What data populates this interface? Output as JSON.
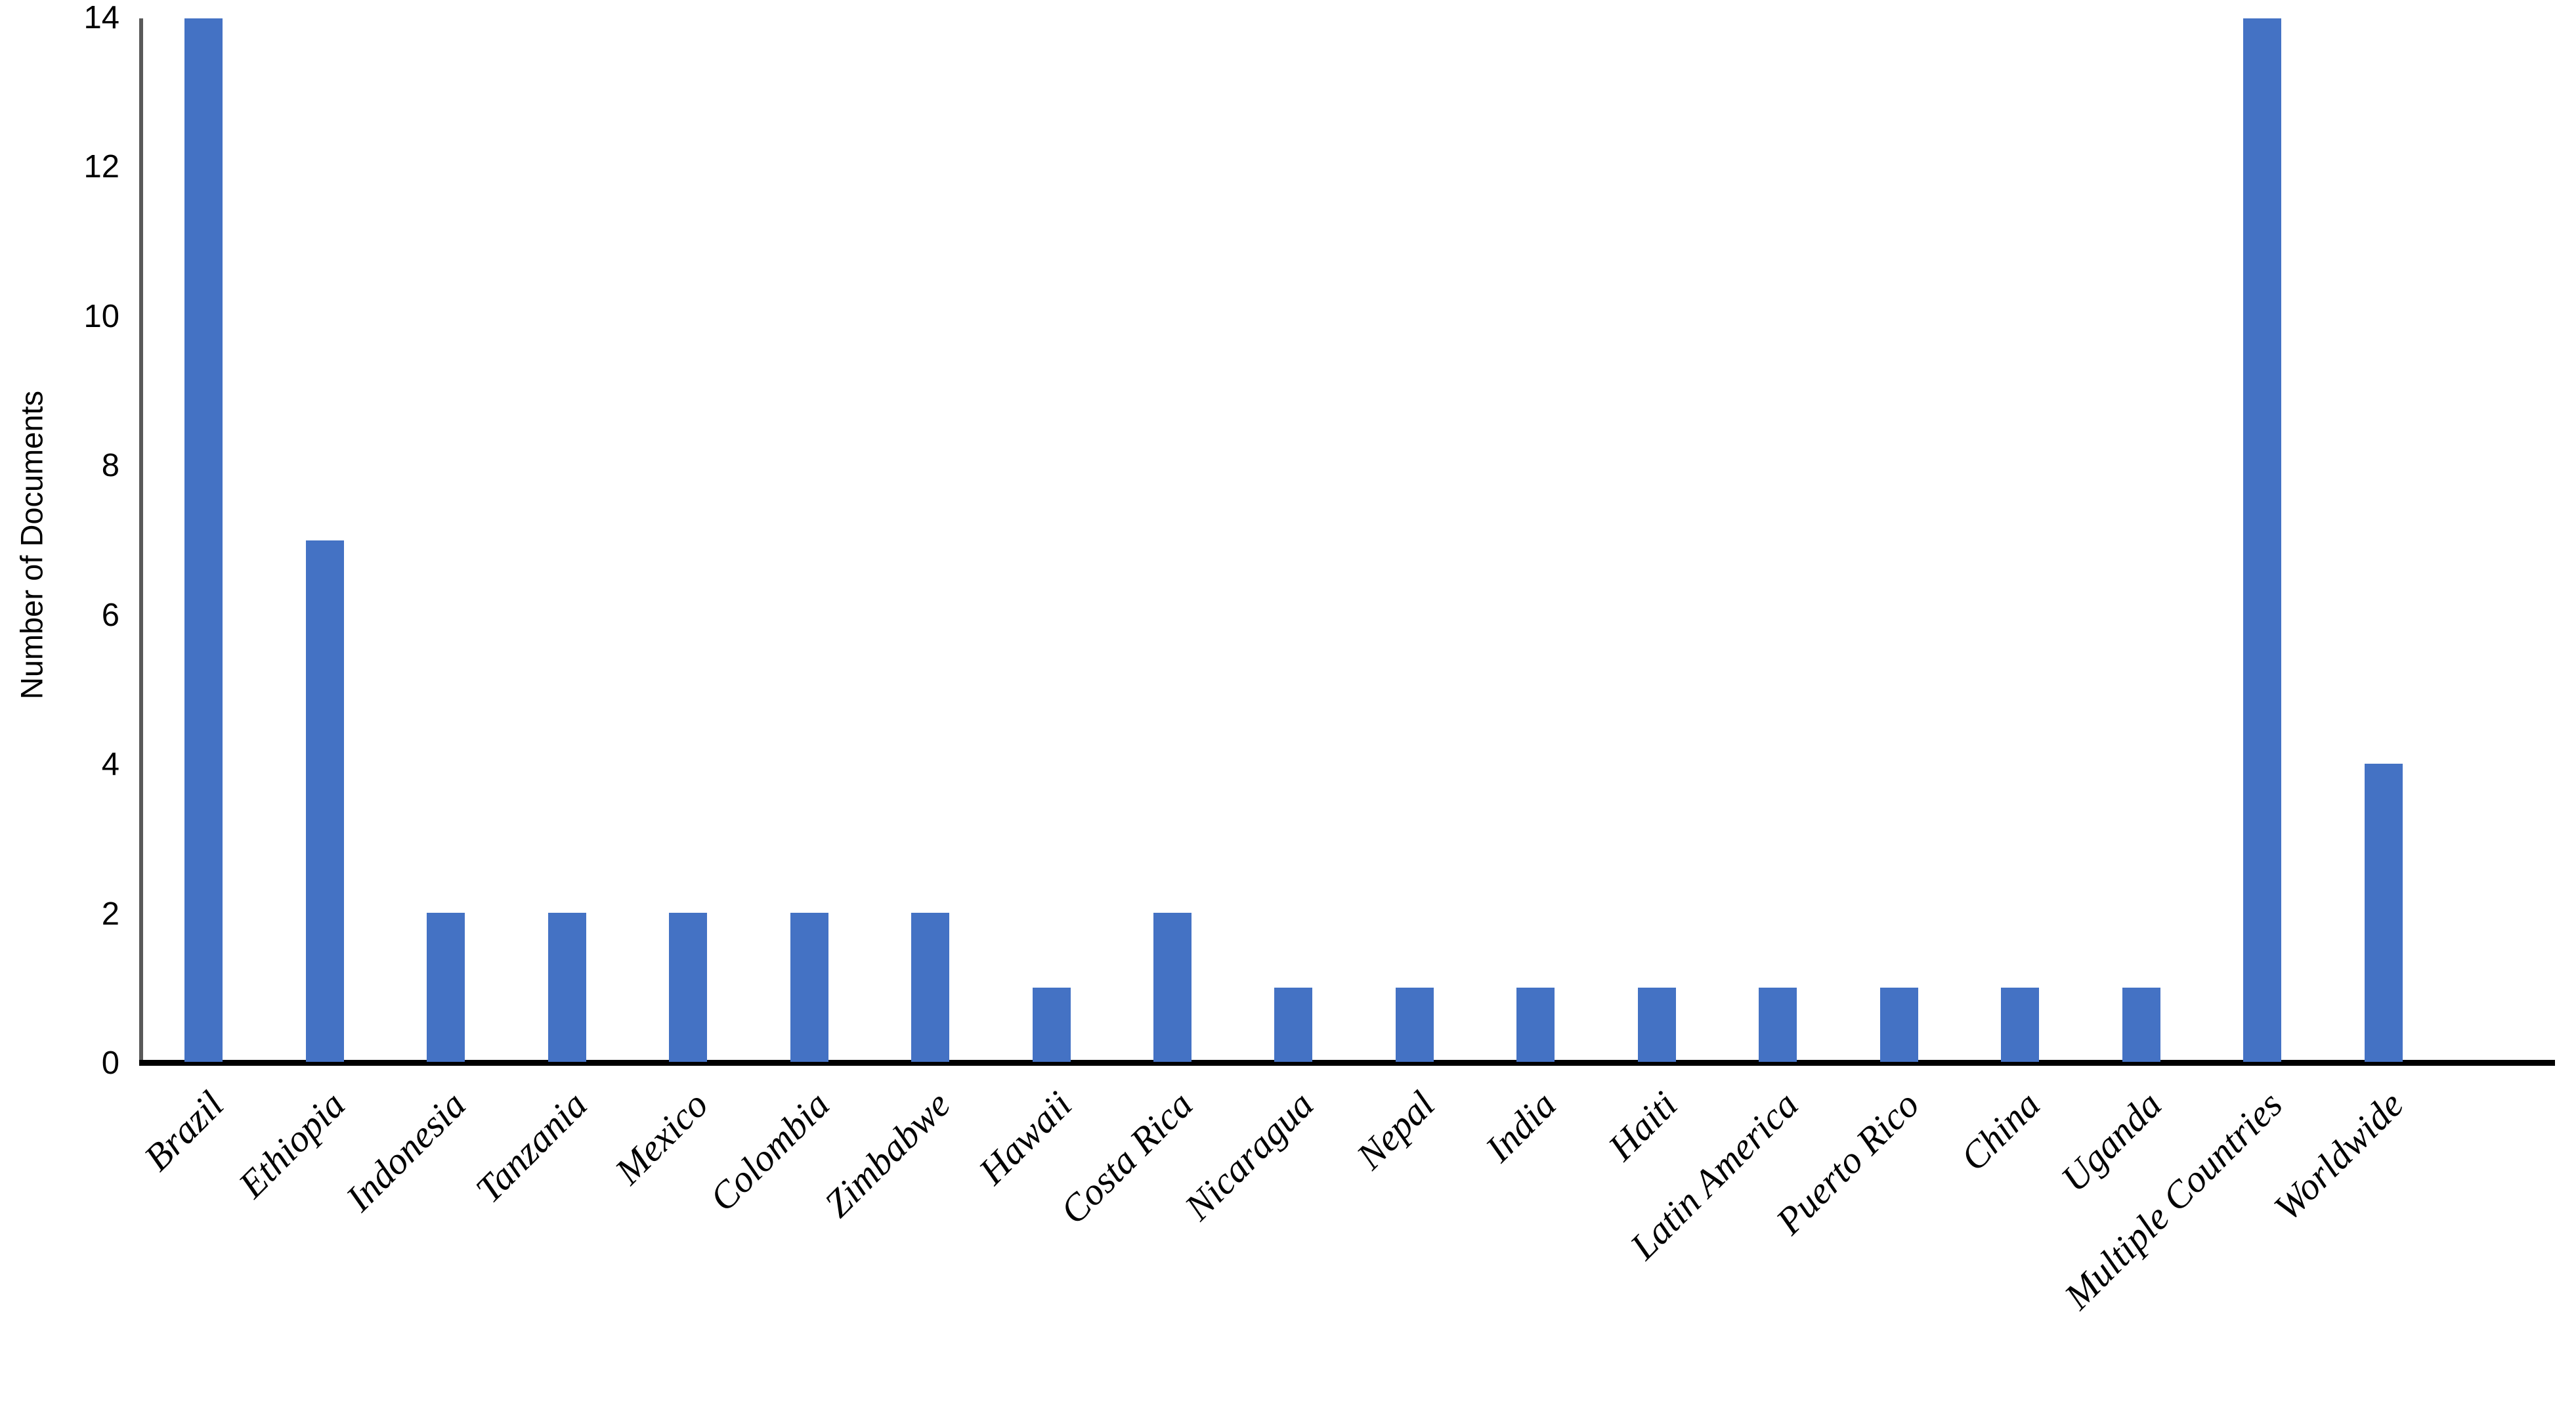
{
  "chart_data": {
    "type": "bar",
    "title": "",
    "xlabel": "",
    "ylabel": "Number of Documents",
    "categories": [
      "Brazil",
      "Ethiopia",
      "Indonesia",
      "Tanzania",
      "Mexico",
      "Colombia",
      "Zimbabwe",
      "Hawaii",
      "Costa Rica",
      "Nicaragua",
      "Nepal",
      "India",
      "Haiti",
      "Latin America",
      "Puerto Rico",
      "China",
      "Uganda",
      "Multiple Countries",
      "Worldwide"
    ],
    "values": [
      14,
      7,
      2,
      2,
      2,
      2,
      2,
      1,
      2,
      1,
      1,
      1,
      1,
      1,
      1,
      1,
      1,
      14,
      4
    ],
    "ylim": [
      0,
      14
    ],
    "yticks": [
      0,
      2,
      4,
      6,
      8,
      10,
      12,
      14
    ],
    "grid": false,
    "legend": false,
    "colors": {
      "bar": "#4472C4",
      "y_axis_line": "#595959",
      "x_axis_line": "#000000",
      "text": "#000000",
      "background": "#FFFFFF"
    }
  }
}
